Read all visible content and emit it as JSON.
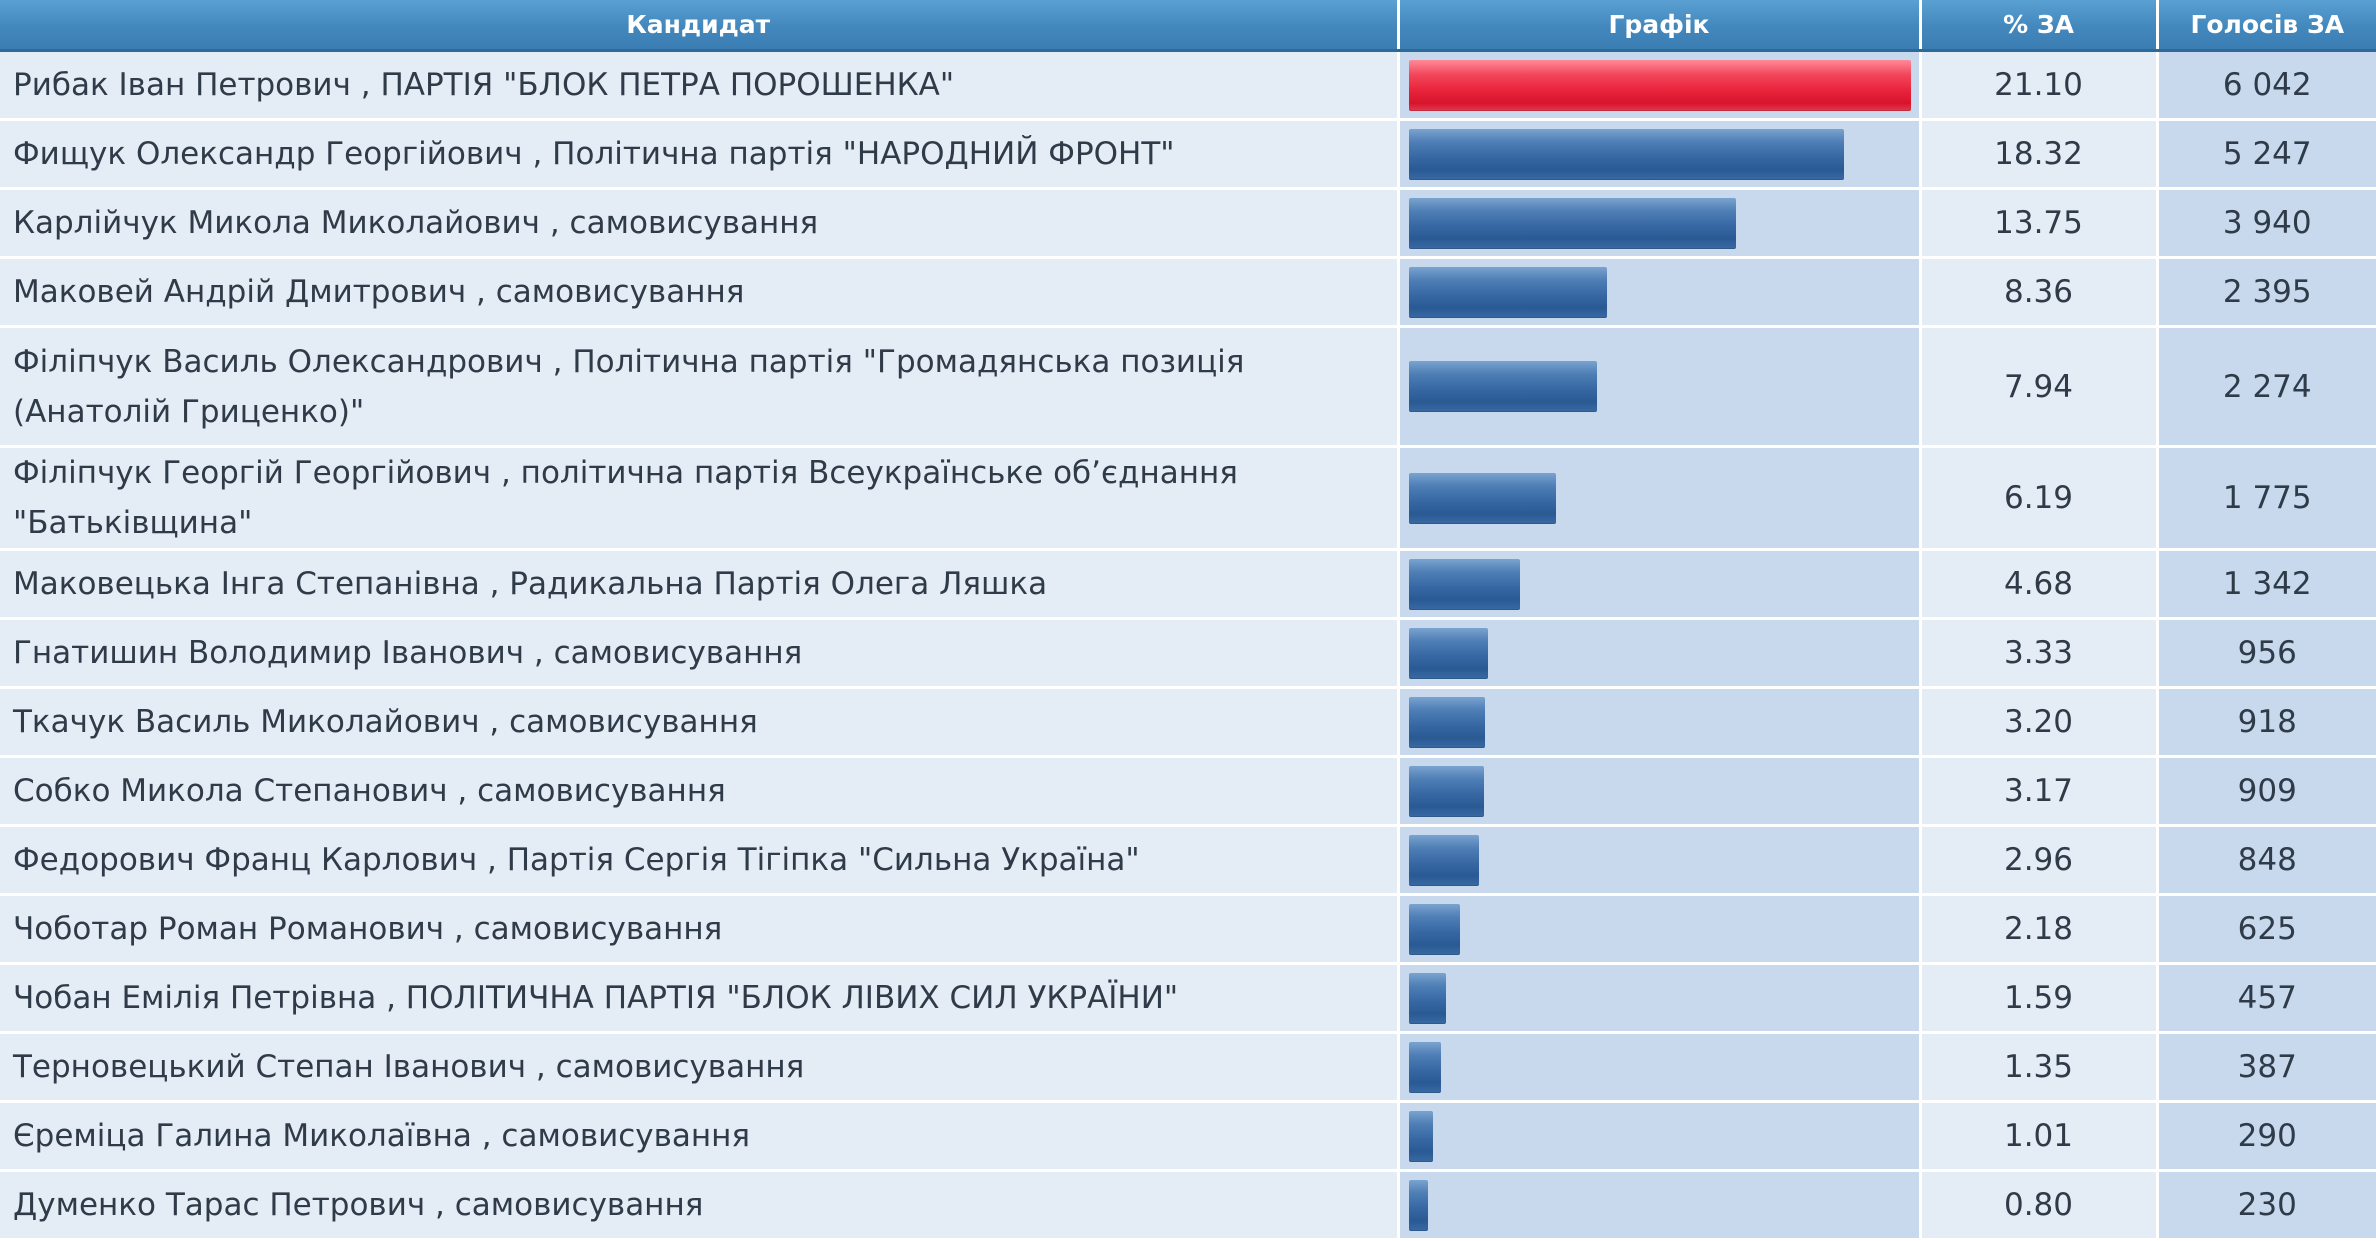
{
  "table": {
    "headers": {
      "candidate": "Кандидат",
      "chart": "Графік",
      "percent": "% ЗА",
      "votes": "Голосів ЗА"
    },
    "bar_scale_max": 21.1,
    "colors": {
      "header_bg": "#4a90c2",
      "bar_default": "#3768a3",
      "bar_leader": "#e8243c",
      "row_light": "#e4ecf5",
      "row_shade": "#c8d9ee"
    },
    "rows": [
      {
        "name": "Рибак Іван Петрович , ПАРТІЯ \"БЛОК ПЕТРА ПОРОШЕНКА\"",
        "percent": "21.10",
        "votes": "6 042",
        "share": 21.1,
        "leader": true
      },
      {
        "name": "Фищук Олександр Георгійович , Політична партія \"НАРОДНИЙ ФРОНТ\"",
        "percent": "18.32",
        "votes": "5 247",
        "share": 18.32,
        "leader": false
      },
      {
        "name": "Карлійчук Микола Миколайович , самовисування",
        "percent": "13.75",
        "votes": "3 940",
        "share": 13.75,
        "leader": false
      },
      {
        "name": "Маковей Андрій Дмитрович , самовисування",
        "percent": "8.36",
        "votes": "2 395",
        "share": 8.36,
        "leader": false
      },
      {
        "name": "Філіпчук Василь Олександрович , Політична партія \"Громадянська позиція (Анатолій Гриценко)\"",
        "percent": "7.94",
        "votes": "2 274",
        "share": 7.94,
        "leader": false,
        "tall": true
      },
      {
        "name": "Філіпчук Георгій Георгійович , політична партія Всеукраїнське об’єднання \"Батьківщина\"",
        "percent": "6.19",
        "votes": "1 775",
        "share": 6.19,
        "leader": false
      },
      {
        "name": "Маковецька Інга Степанівна , Радикальна Партія Олега Ляшка",
        "percent": "4.68",
        "votes": "1 342",
        "share": 4.68,
        "leader": false
      },
      {
        "name": "Гнатишин Володимир Іванович , самовисування",
        "percent": "3.33",
        "votes": "956",
        "share": 3.33,
        "leader": false
      },
      {
        "name": "Ткачук Василь Миколайович , самовисування",
        "percent": "3.20",
        "votes": "918",
        "share": 3.2,
        "leader": false
      },
      {
        "name": "Собко Микола Степанович , самовисування",
        "percent": "3.17",
        "votes": "909",
        "share": 3.17,
        "leader": false
      },
      {
        "name": "Федорович Франц Карлович , Партія Сергія Тігіпка \"Сильна Україна\"",
        "percent": "2.96",
        "votes": "848",
        "share": 2.96,
        "leader": false
      },
      {
        "name": "Чоботар Роман Романович , самовисування",
        "percent": "2.18",
        "votes": "625",
        "share": 2.18,
        "leader": false
      },
      {
        "name": "Чобан Емілія Петрівна , ПОЛІТИЧНА ПАРТІЯ \"БЛОК ЛІВИХ СИЛ УКРАЇНИ\"",
        "percent": "1.59",
        "votes": "457",
        "share": 1.59,
        "leader": false
      },
      {
        "name": "Терновецький Степан Іванович , самовисування",
        "percent": "1.35",
        "votes": "387",
        "share": 1.35,
        "leader": false
      },
      {
        "name": "Єреміца Галина Миколаївна , самовисування",
        "percent": "1.01",
        "votes": "290",
        "share": 1.01,
        "leader": false
      },
      {
        "name": "Думенко Тарас Петрович , самовисування",
        "percent": "0.80",
        "votes": "230",
        "share": 0.8,
        "leader": false
      }
    ]
  }
}
